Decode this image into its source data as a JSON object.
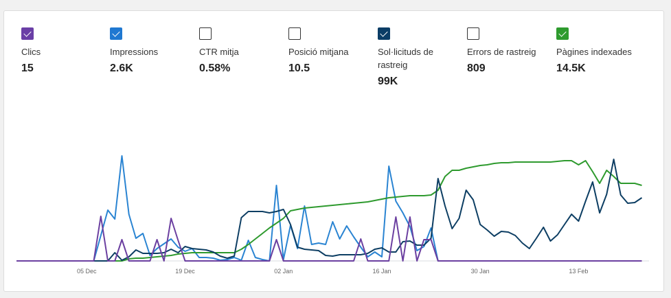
{
  "metrics": [
    {
      "label": "Clics",
      "value": "15",
      "checked": true,
      "color": "#6a3fa6"
    },
    {
      "label": "Impressions",
      "value": "2.6K",
      "checked": true,
      "color": "#1f78d1"
    },
    {
      "label": "CTR mitja",
      "value": "0.58%",
      "checked": false,
      "color": "#ffffff"
    },
    {
      "label": "Posició mitjana",
      "value": "10.5",
      "checked": false,
      "color": "#ffffff"
    },
    {
      "label": "Sol·licituds de rastreig",
      "value": "99K",
      "checked": true,
      "color": "#0b3d66"
    },
    {
      "label": "Errors de rastreig",
      "value": "809",
      "checked": false,
      "color": "#ffffff"
    },
    {
      "label": "Pàgines indexades",
      "value": "14.5K",
      "checked": true,
      "color": "#2e9b2e"
    }
  ],
  "chart_data": {
    "type": "line",
    "xlabel": "",
    "ylabel": "",
    "x_tick_labels": [
      "05 Dec",
      "19 Dec",
      "02 Jan",
      "16 Jan",
      "30 Jan",
      "13 Feb"
    ],
    "x": [
      "25 Nov",
      "26 Nov",
      "27 Nov",
      "28 Nov",
      "29 Nov",
      "30 Nov",
      "01 Dec",
      "02 Dec",
      "03 Dec",
      "04 Dec",
      "05 Dec",
      "06 Dec",
      "07 Dec",
      "08 Dec",
      "09 Dec",
      "10 Dec",
      "11 Dec",
      "12 Dec",
      "13 Dec",
      "14 Dec",
      "15 Dec",
      "16 Dec",
      "17 Dec",
      "18 Dec",
      "19 Dec",
      "20 Dec",
      "21 Dec",
      "22 Dec",
      "23 Dec",
      "24 Dec",
      "25 Dec",
      "26 Dec",
      "27 Dec",
      "28 Dec",
      "29 Dec",
      "30 Dec",
      "31 Dec",
      "01 Jan",
      "02 Jan",
      "03 Jan",
      "04 Jan",
      "05 Jan",
      "06 Jan",
      "07 Jan",
      "08 Jan",
      "09 Jan",
      "10 Jan",
      "11 Jan",
      "12 Jan",
      "13 Jan",
      "14 Jan",
      "15 Jan",
      "16 Jan",
      "17 Jan",
      "18 Jan",
      "19 Jan",
      "20 Jan",
      "21 Jan",
      "22 Jan",
      "23 Jan",
      "24 Jan",
      "25 Jan",
      "26 Jan",
      "27 Jan",
      "28 Jan",
      "29 Jan",
      "30 Jan",
      "31 Jan",
      "01 Feb",
      "02 Feb",
      "03 Feb",
      "04 Feb",
      "05 Feb",
      "06 Feb",
      "07 Feb",
      "08 Feb",
      "09 Feb",
      "10 Feb",
      "11 Feb",
      "12 Feb",
      "13 Feb",
      "14 Feb",
      "15 Feb",
      "16 Feb",
      "17 Feb",
      "18 Feb",
      "19 Feb",
      "20 Feb",
      "21 Feb",
      "22 Feb"
    ],
    "y_scale": "relative (no axis shown)",
    "ylim": [
      0,
      160
    ],
    "grid": false,
    "series": [
      {
        "metric": "Clics",
        "color": "#6b3fa0",
        "values": [
          0,
          0,
          0,
          0,
          0,
          0,
          0,
          0,
          0,
          0,
          0,
          0,
          65,
          0,
          0,
          31,
          0,
          0,
          0,
          0,
          31,
          0,
          62,
          30,
          0,
          0,
          0,
          0,
          0,
          0,
          0,
          0,
          0,
          0,
          0,
          0,
          0,
          31,
          0,
          0,
          0,
          0,
          0,
          0,
          0,
          0,
          0,
          0,
          0,
          32,
          0,
          0,
          0,
          0,
          64,
          0,
          64,
          0,
          31,
          31,
          0,
          0,
          0,
          0,
          0,
          0,
          0,
          0,
          0,
          0,
          0,
          0,
          0,
          0,
          0,
          0,
          0,
          0,
          0,
          0,
          0,
          0,
          0,
          0,
          0,
          0,
          0,
          0,
          0,
          0
        ]
      },
      {
        "metric": "Impressions",
        "color": "#2a84d2",
        "values": [
          0,
          0,
          0,
          0,
          0,
          0,
          0,
          0,
          0,
          0,
          0,
          0,
          37,
          74,
          61,
          153,
          68,
          33,
          40,
          8,
          18,
          25,
          32,
          20,
          14,
          18,
          5,
          5,
          4,
          1,
          2,
          5,
          1,
          30,
          5,
          2,
          0,
          110,
          2,
          52,
          18,
          80,
          24,
          26,
          24,
          57,
          32,
          51,
          35,
          20,
          6,
          13,
          6,
          138,
          87,
          70,
          50,
          15,
          21,
          48,
          0,
          0,
          0,
          0,
          0,
          0,
          0,
          0,
          0,
          0,
          0,
          0,
          0,
          0,
          0,
          0,
          0,
          0,
          0,
          0,
          0,
          0,
          0,
          0,
          0,
          0,
          0,
          0,
          0,
          0
        ]
      },
      {
        "metric": "Sol·licituds de rastreig",
        "color": "#0d3e63",
        "values": [
          0,
          0,
          0,
          0,
          0,
          0,
          0,
          0,
          0,
          0,
          0,
          0,
          0,
          0,
          12,
          1,
          6,
          16,
          11,
          11,
          11,
          12,
          17,
          12,
          21,
          18,
          17,
          16,
          13,
          7,
          4,
          7,
          63,
          72,
          72,
          72,
          70,
          72,
          75,
          53,
          20,
          17,
          16,
          15,
          8,
          7,
          9,
          9,
          9,
          9,
          11,
          17,
          19,
          13,
          13,
          28,
          29,
          23,
          23,
          33,
          120,
          80,
          47,
          62,
          103,
          89,
          53,
          45,
          36,
          43,
          42,
          37,
          26,
          18,
          33,
          49,
          29,
          38,
          53,
          68,
          58,
          87,
          115,
          70,
          97,
          148,
          96,
          84,
          85,
          92
        ]
      },
      {
        "metric": "Pàgines indexades",
        "color": "#2e9a2e",
        "values": [
          0,
          0,
          0,
          0,
          0,
          0,
          0,
          0,
          0,
          0,
          0,
          0,
          0,
          0,
          0,
          0,
          3,
          4,
          4,
          5,
          6,
          7,
          8,
          10,
          11,
          12,
          12,
          12,
          12,
          12,
          12,
          12,
          17,
          24,
          32,
          40,
          48,
          55,
          62,
          73,
          75,
          77,
          78,
          79,
          80,
          81,
          82,
          83,
          84,
          85,
          86,
          88,
          90,
          92,
          93,
          94,
          95,
          95,
          95,
          96,
          103,
          123,
          132,
          132,
          135,
          137,
          139,
          140,
          142,
          143,
          143,
          144,
          144,
          144,
          144,
          144,
          144,
          145,
          146,
          146,
          140,
          146,
          130,
          113,
          132,
          123,
          113,
          113,
          113,
          110
        ]
      }
    ]
  }
}
